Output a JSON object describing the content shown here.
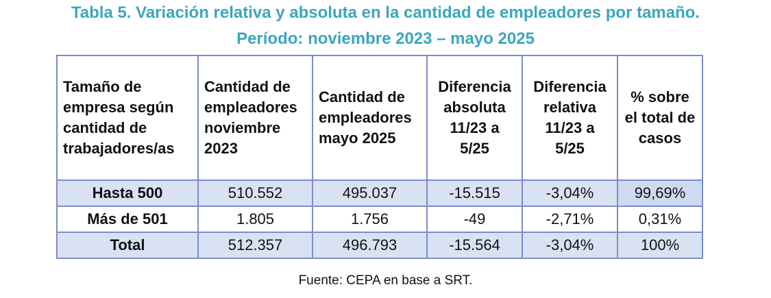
{
  "title": {
    "line1": "Tabla 5. Variación relativa y absoluta en la cantidad de empleadores por tamaño.",
    "line2": "Período: noviembre 2023 – mayo 2025"
  },
  "table": {
    "headers": [
      "Tamaño de empresa según cantidad de trabajadores/as",
      "Cantidad de empleadores noviembre 2023",
      "Cantidad de empleadores mayo 2025",
      "Diferencia absoluta 11/23 a 5/25",
      "Diferencia relativa 11/23 a 5/25",
      "% sobre el total de casos"
    ],
    "rows": [
      [
        "Hasta 500",
        "510.552",
        "495.037",
        "-15.515",
        "-3,04%",
        "99,69%"
      ],
      [
        "Más de 501",
        "1.805",
        "1.756",
        "-49",
        "-2,71%",
        "0,31%"
      ],
      [
        "Total",
        "512.357",
        "496.793",
        "-15.564",
        "-3,04%",
        "100%"
      ]
    ]
  },
  "source": "Fuente: CEPA en base a SRT.",
  "colors": {
    "title": "#3aa6bf",
    "border": "#7a8cc9",
    "row_shade": "#d9e2f3"
  }
}
